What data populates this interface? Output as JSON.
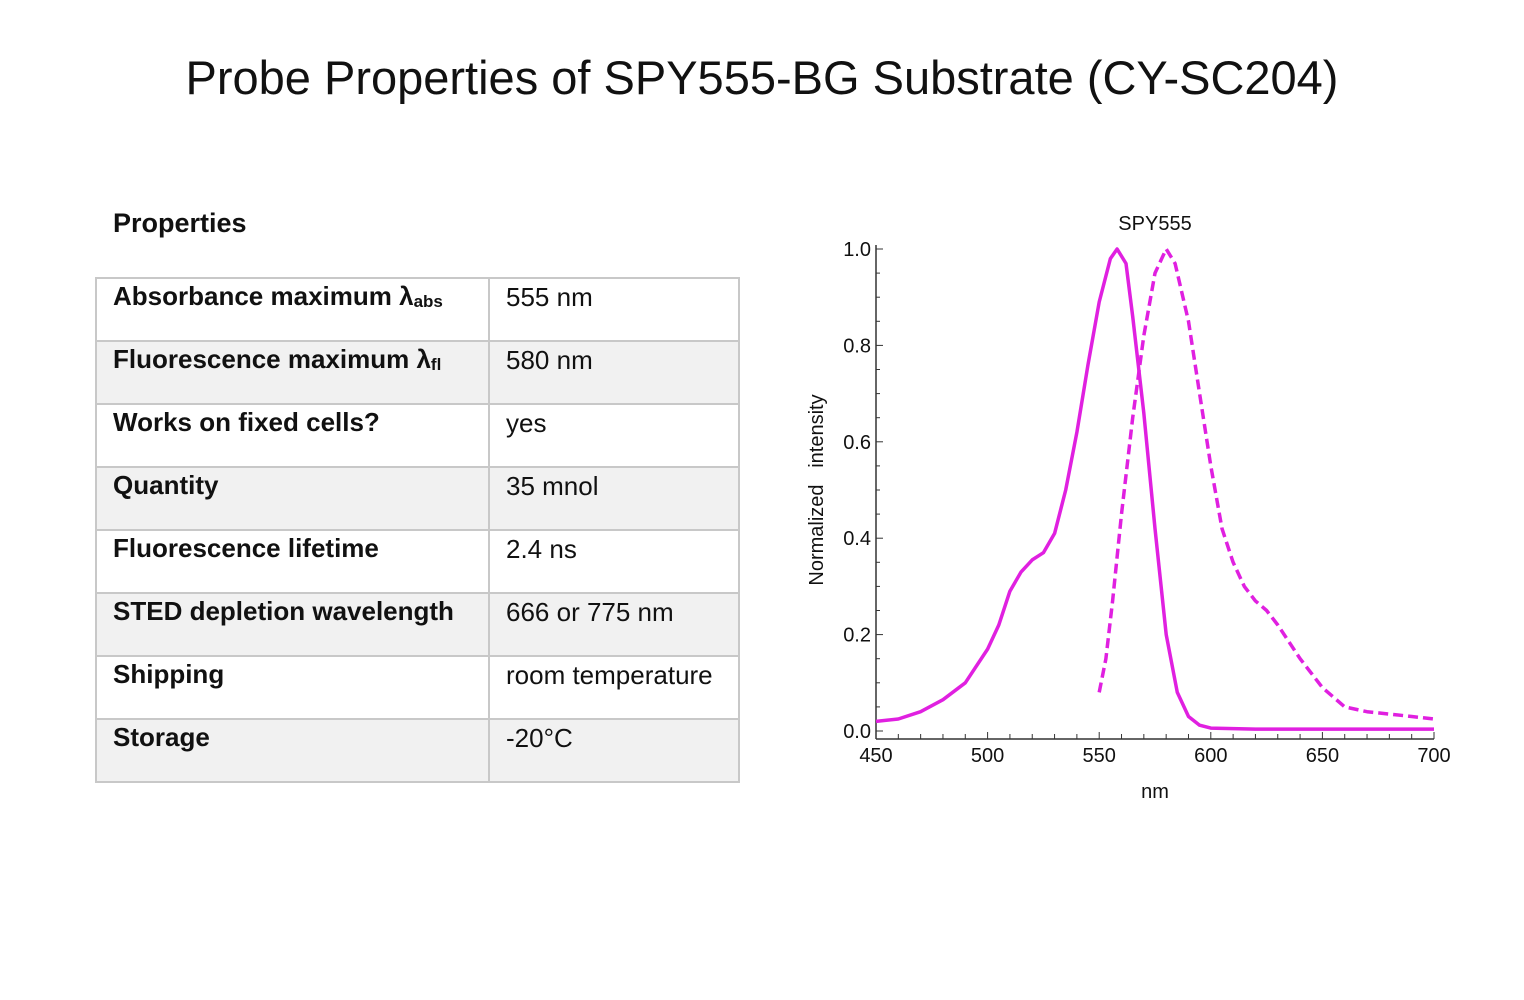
{
  "title": "Probe Properties of SPY555-BG Substrate (CY-SC204)",
  "properties": {
    "heading": "Properties",
    "rows": [
      {
        "label": "Absorbance maximum λ",
        "sub": "abs",
        "value": "555 nm"
      },
      {
        "label": "Fluorescence maximum λ",
        "sub": "fl",
        "value": "580 nm"
      },
      {
        "label": "Works on fixed cells?",
        "sub": "",
        "value": "yes"
      },
      {
        "label": "Quantity",
        "sub": "",
        "value": "35 mnol"
      },
      {
        "label": "Fluorescence lifetime",
        "sub": "",
        "value": "2.4 ns"
      },
      {
        "label": "STED depletion wavelength",
        "sub": "",
        "value": "666 or 775 nm"
      },
      {
        "label": "Shipping",
        "sub": "",
        "value": "room temperature"
      },
      {
        "label": "Storage",
        "sub": "",
        "value": "-20°C"
      }
    ]
  },
  "chart_data": {
    "type": "line",
    "title": "SPY555",
    "xlabel": "nm",
    "ylabel": "Normalized   intensity",
    "xlim": [
      450,
      700
    ],
    "ylim": [
      0,
      1.0
    ],
    "xticks": [
      "450",
      "500",
      "550",
      "600",
      "650",
      "700"
    ],
    "yticks": [
      "0.0",
      "0.2",
      "0.4",
      "0.6",
      "0.8",
      "1.0"
    ],
    "grid": false,
    "color": "#e020e0",
    "series": [
      {
        "style": "solid",
        "x": [
          450,
          460,
          470,
          480,
          490,
          500,
          505,
          510,
          515,
          520,
          525,
          530,
          535,
          540,
          545,
          550,
          555,
          558,
          562,
          565,
          570,
          575,
          580,
          585,
          590,
          595,
          600,
          620,
          700
        ],
        "y": [
          0.02,
          0.025,
          0.04,
          0.065,
          0.1,
          0.17,
          0.22,
          0.29,
          0.33,
          0.355,
          0.37,
          0.41,
          0.5,
          0.62,
          0.76,
          0.89,
          0.98,
          1.0,
          0.97,
          0.86,
          0.66,
          0.42,
          0.2,
          0.08,
          0.03,
          0.012,
          0.006,
          0.004,
          0.004
        ]
      },
      {
        "style": "dashed",
        "x": [
          550,
          553,
          556,
          560,
          565,
          570,
          575,
          580,
          584,
          590,
          595,
          600,
          605,
          610,
          615,
          620,
          625,
          630,
          640,
          650,
          660,
          670,
          680,
          690,
          700
        ],
        "y": [
          0.08,
          0.15,
          0.27,
          0.45,
          0.65,
          0.82,
          0.95,
          1.0,
          0.97,
          0.85,
          0.7,
          0.55,
          0.42,
          0.35,
          0.3,
          0.27,
          0.25,
          0.22,
          0.15,
          0.09,
          0.05,
          0.04,
          0.035,
          0.03,
          0.025
        ]
      }
    ]
  }
}
